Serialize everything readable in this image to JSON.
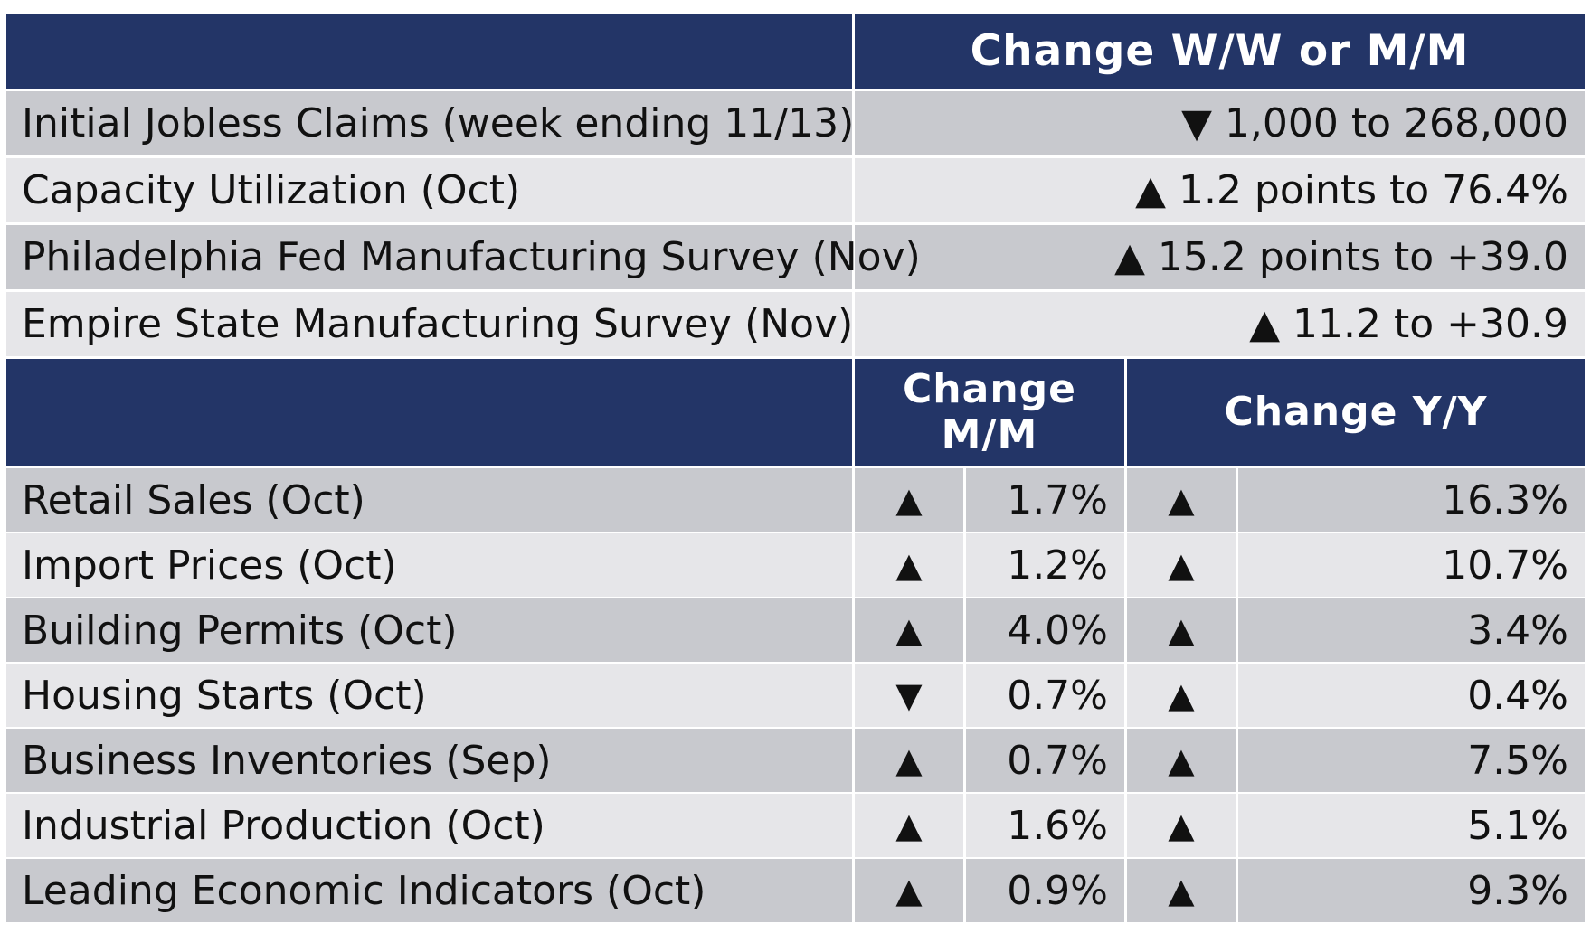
{
  "top_table": {
    "header": "Change W/W or M/M",
    "rows": [
      {
        "label": "Initial Jobless Claims (week ending 11/13)",
        "arrow": "▼",
        "value": "1,000 to 268,000"
      },
      {
        "label": "Capacity Utilization (Oct)",
        "arrow": "▲",
        "value": "1.2 points to 76.4%"
      },
      {
        "label": "Philadelphia Fed Manufacturing Survey (Nov)",
        "arrow": "▲",
        "value": "15.2 points to +39.0"
      },
      {
        "label": "Empire State Manufacturing Survey (Nov)",
        "arrow": "▲",
        "value": "11.2 to +30.9"
      }
    ]
  },
  "bottom_table": {
    "header_mm_line1": "Change",
    "header_mm_line2": "M/M",
    "header_yy": "Change Y/Y",
    "rows": [
      {
        "label": "Retail Sales (Oct)",
        "mm_arrow": "▲",
        "mm_value": "1.7%",
        "yy_arrow": "▲",
        "yy_value": "16.3%"
      },
      {
        "label": "Import Prices (Oct)",
        "mm_arrow": "▲",
        "mm_value": "1.2%",
        "yy_arrow": "▲",
        "yy_value": "10.7%"
      },
      {
        "label": "Building Permits (Oct)",
        "mm_arrow": "▲",
        "mm_value": "4.0%",
        "yy_arrow": "▲",
        "yy_value": "3.4%"
      },
      {
        "label": "Housing Starts (Oct)",
        "mm_arrow": "▼",
        "mm_value": "0.7%",
        "yy_arrow": "▲",
        "yy_value": "0.4%"
      },
      {
        "label": "Business Inventories (Sep)",
        "mm_arrow": "▲",
        "mm_value": "0.7%",
        "yy_arrow": "▲",
        "yy_value": "7.5%"
      },
      {
        "label": "Industrial Production (Oct)",
        "mm_arrow": "▲",
        "mm_value": "1.6%",
        "yy_arrow": "▲",
        "yy_value": "5.1%"
      },
      {
        "label": "Leading Economic Indicators (Oct)",
        "mm_arrow": "▲",
        "mm_value": "0.9%",
        "yy_arrow": "▲",
        "yy_value": "9.3%"
      }
    ]
  },
  "colors": {
    "header_bg": "#233567",
    "row_dark": "#c8c9ce",
    "row_light": "#e6e6e9"
  }
}
